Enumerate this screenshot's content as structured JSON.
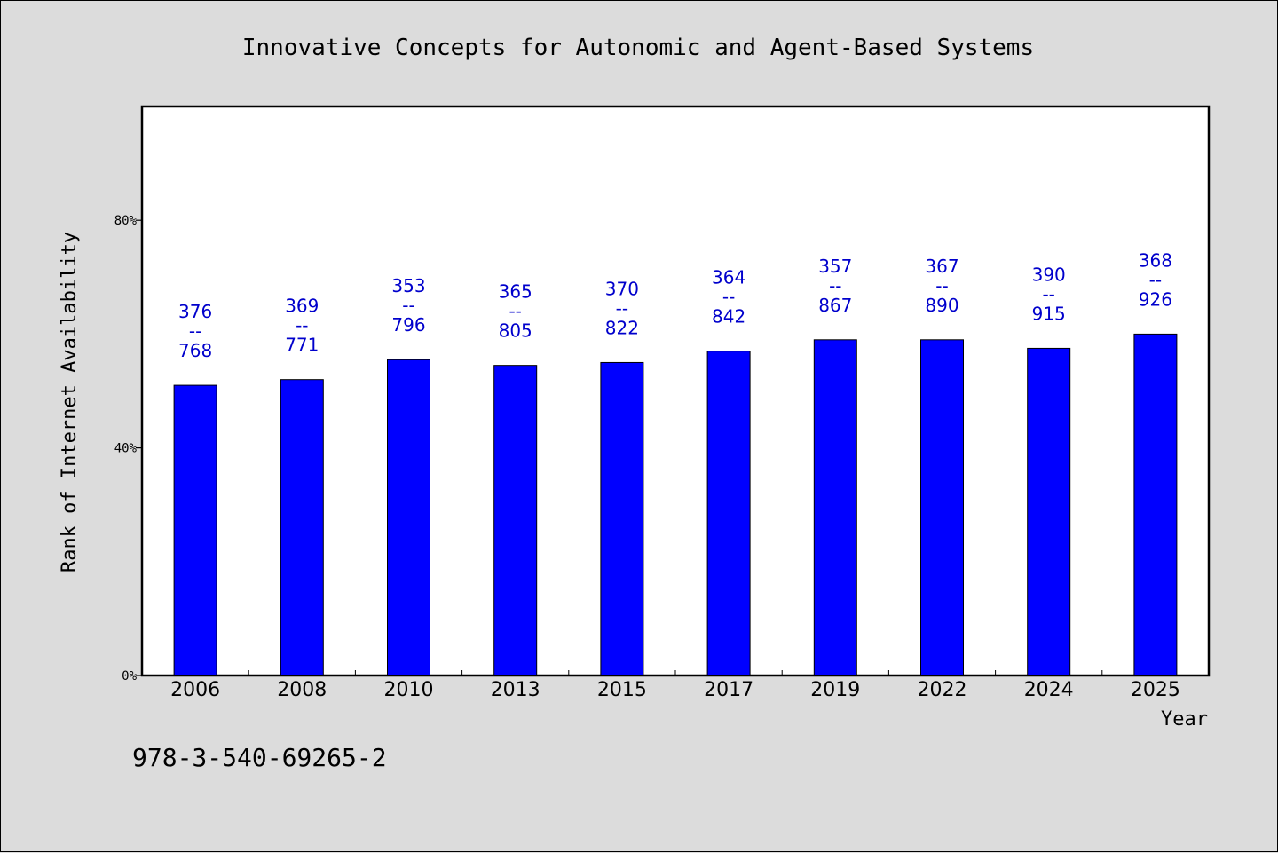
{
  "footer": "978-3-540-69265-2",
  "colors": {
    "background": "#dcdcdc",
    "plot_background": "#ffffff",
    "bar_fill": "#0000ff",
    "bar_stroke": "#000000",
    "label_color": "#0000cc"
  },
  "chart_data": {
    "type": "bar",
    "title": "Innovative Concepts for Autonomic and Agent-Based Systems",
    "xlabel": "Year",
    "ylabel": "Rank of Internet Availability",
    "ylim": [
      0,
      100
    ],
    "yticks": [
      0,
      40,
      80
    ],
    "ytick_labels": [
      "0%",
      "40%",
      "80%"
    ],
    "grid": false,
    "categories": [
      "2006",
      "2008",
      "2010",
      "2013",
      "2015",
      "2017",
      "2019",
      "2022",
      "2024",
      "2025"
    ],
    "values": [
      51,
      52,
      55.5,
      54.5,
      55,
      57,
      59,
      59,
      57.5,
      60
    ],
    "bar_labels": [
      [
        "376",
        "--",
        "768"
      ],
      [
        "369",
        "--",
        "771"
      ],
      [
        "353",
        "--",
        "796"
      ],
      [
        "365",
        "--",
        "805"
      ],
      [
        "370",
        "--",
        "822"
      ],
      [
        "364",
        "--",
        "842"
      ],
      [
        "357",
        "--",
        "867"
      ],
      [
        "367",
        "--",
        "890"
      ],
      [
        "390",
        "--",
        "915"
      ],
      [
        "368",
        "--",
        "926"
      ]
    ]
  }
}
